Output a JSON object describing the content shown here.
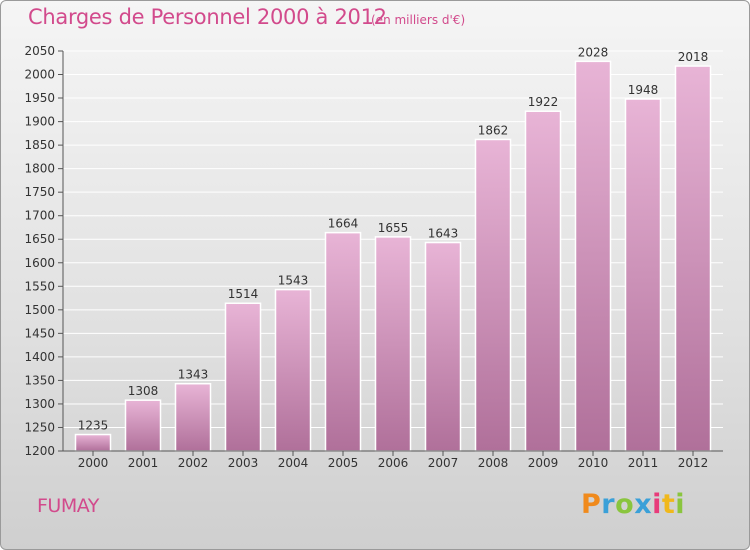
{
  "header": {
    "title": "Charges de Personnel 2000 à 2012",
    "subtitle": "(en milliers d'€)"
  },
  "footer": {
    "commune": "FUMAY",
    "logo_text": "Proxiti",
    "logo_colors": [
      "#f08a1c",
      "#3aa0d8",
      "#8ac53e",
      "#3aa0d8",
      "#e83b7a",
      "#f0b81c",
      "#8ac53e"
    ]
  },
  "colors": {
    "bar_top": "#e8b4d6",
    "bar_bottom": "#b0709a",
    "accent": "#d24a8c",
    "grid": "#ffffff"
  },
  "chart_data": {
    "type": "bar",
    "categories": [
      "2000",
      "2001",
      "2002",
      "2003",
      "2004",
      "2005",
      "2006",
      "2007",
      "2008",
      "2009",
      "2010",
      "2011",
      "2012"
    ],
    "values": [
      1235,
      1308,
      1343,
      1514,
      1543,
      1664,
      1655,
      1643,
      1862,
      1922,
      2028,
      1948,
      2018
    ],
    "title": "Charges de Personnel 2000 à 2012",
    "xlabel": "",
    "ylabel": "",
    "ylim": [
      1200,
      2050
    ],
    "yticks": [
      1200,
      1250,
      1300,
      1350,
      1400,
      1450,
      1500,
      1550,
      1600,
      1650,
      1700,
      1750,
      1800,
      1850,
      1900,
      1950,
      2000,
      2050
    ],
    "grid": true,
    "data_labels": true
  }
}
